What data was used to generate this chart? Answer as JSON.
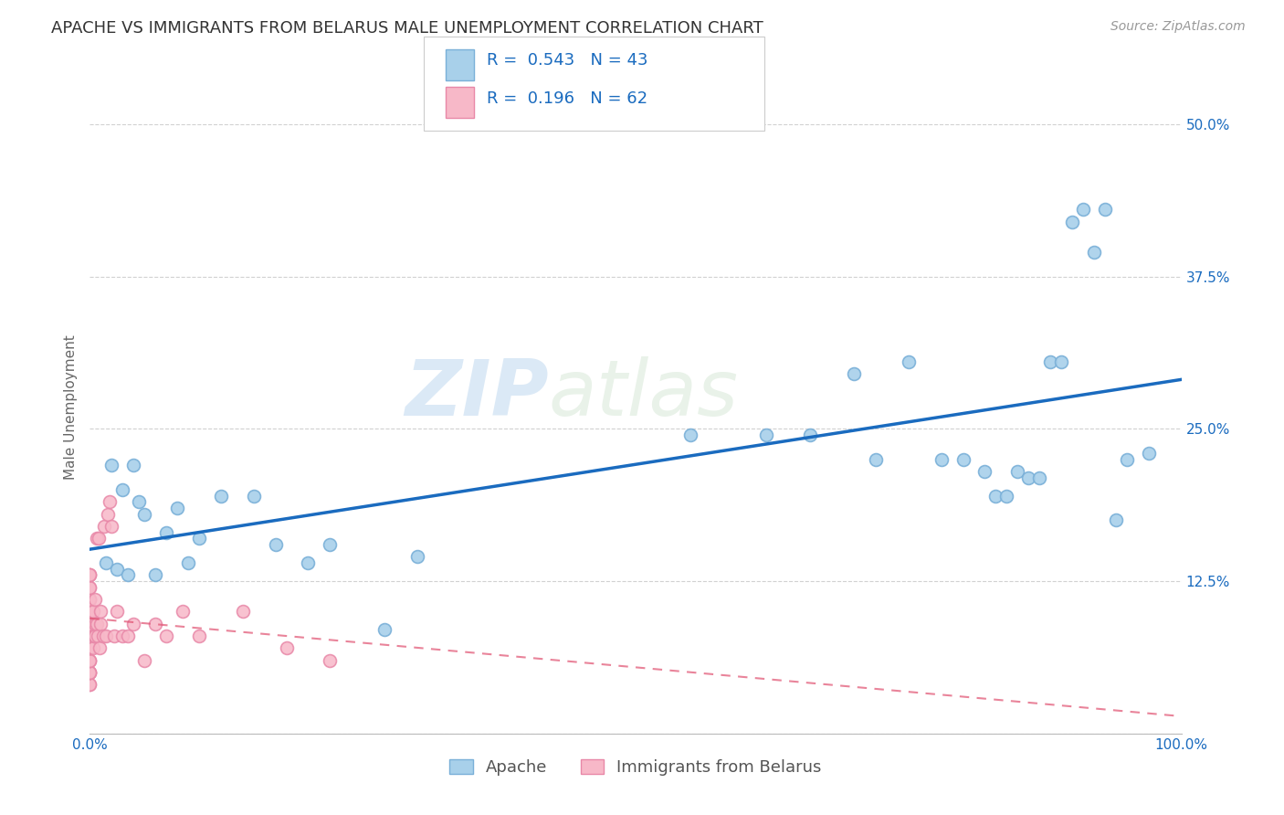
{
  "title": "APACHE VS IMMIGRANTS FROM BELARUS MALE UNEMPLOYMENT CORRELATION CHART",
  "source": "Source: ZipAtlas.com",
  "ylabel": "Male Unemployment",
  "watermark": "ZIPatlas",
  "legend1_label": "Apache",
  "legend2_label": "Immigrants from Belarus",
  "R1": 0.543,
  "N1": 43,
  "R2": 0.196,
  "N2": 62,
  "color_apache": "#a8d0ea",
  "color_apache_edge": "#7ab0d8",
  "color_belarus": "#f7b8c8",
  "color_belarus_edge": "#e888a8",
  "color_apache_line": "#1a6bbf",
  "color_belarus_line": "#e05070",
  "xlim": [
    0.0,
    1.0
  ],
  "ylim": [
    0.0,
    0.535
  ],
  "xticks": [
    0.0,
    0.125,
    0.25,
    0.375,
    0.5,
    0.625,
    0.75,
    0.875,
    1.0
  ],
  "xticklabels": [
    "0.0%",
    "",
    "",
    "",
    "",
    "",
    "",
    "",
    "100.0%"
  ],
  "yticks": [
    0.0,
    0.125,
    0.25,
    0.375,
    0.5
  ],
  "yticklabels": [
    "",
    "12.5%",
    "25.0%",
    "37.5%",
    "50.0%"
  ],
  "apache_x": [
    0.015,
    0.02,
    0.025,
    0.03,
    0.035,
    0.04,
    0.045,
    0.05,
    0.06,
    0.07,
    0.08,
    0.09,
    0.1,
    0.12,
    0.15,
    0.17,
    0.2,
    0.22,
    0.27,
    0.3,
    0.55,
    0.62,
    0.66,
    0.7,
    0.72,
    0.75,
    0.78,
    0.8,
    0.82,
    0.83,
    0.84,
    0.85,
    0.86,
    0.87,
    0.88,
    0.89,
    0.9,
    0.91,
    0.92,
    0.93,
    0.94,
    0.95,
    0.97
  ],
  "apache_y": [
    0.14,
    0.22,
    0.135,
    0.2,
    0.13,
    0.22,
    0.19,
    0.18,
    0.13,
    0.165,
    0.185,
    0.14,
    0.16,
    0.195,
    0.195,
    0.155,
    0.14,
    0.155,
    0.085,
    0.145,
    0.245,
    0.245,
    0.245,
    0.295,
    0.225,
    0.305,
    0.225,
    0.225,
    0.215,
    0.195,
    0.195,
    0.215,
    0.21,
    0.21,
    0.305,
    0.305,
    0.42,
    0.43,
    0.395,
    0.43,
    0.175,
    0.225,
    0.23
  ],
  "belarus_x": [
    0.0,
    0.0,
    0.0,
    0.0,
    0.0,
    0.0,
    0.0,
    0.0,
    0.0,
    0.0,
    0.0,
    0.0,
    0.0,
    0.0,
    0.0,
    0.0,
    0.0,
    0.0,
    0.0,
    0.0,
    0.0,
    0.0,
    0.0,
    0.0,
    0.0,
    0.0,
    0.0,
    0.0,
    0.0,
    0.0,
    0.003,
    0.003,
    0.004,
    0.005,
    0.005,
    0.005,
    0.006,
    0.006,
    0.007,
    0.008,
    0.009,
    0.01,
    0.01,
    0.012,
    0.013,
    0.015,
    0.016,
    0.018,
    0.02,
    0.022,
    0.025,
    0.03,
    0.035,
    0.04,
    0.05,
    0.06,
    0.07,
    0.085,
    0.1,
    0.14,
    0.18,
    0.22
  ],
  "belarus_y": [
    0.04,
    0.04,
    0.05,
    0.05,
    0.05,
    0.05,
    0.06,
    0.06,
    0.06,
    0.07,
    0.07,
    0.07,
    0.08,
    0.08,
    0.08,
    0.09,
    0.09,
    0.09,
    0.1,
    0.1,
    0.1,
    0.1,
    0.11,
    0.11,
    0.11,
    0.12,
    0.12,
    0.13,
    0.13,
    0.13,
    0.07,
    0.1,
    0.08,
    0.08,
    0.09,
    0.11,
    0.09,
    0.16,
    0.08,
    0.16,
    0.07,
    0.09,
    0.1,
    0.08,
    0.17,
    0.08,
    0.18,
    0.19,
    0.17,
    0.08,
    0.1,
    0.08,
    0.08,
    0.09,
    0.06,
    0.09,
    0.08,
    0.1,
    0.08,
    0.1,
    0.07,
    0.06
  ],
  "background_color": "#ffffff",
  "grid_color": "#cccccc",
  "title_fontsize": 13,
  "axis_label_fontsize": 11,
  "tick_fontsize": 11,
  "legend_fontsize": 13,
  "source_fontsize": 10,
  "marker_size": 100,
  "marker_linewidth": 1.2
}
